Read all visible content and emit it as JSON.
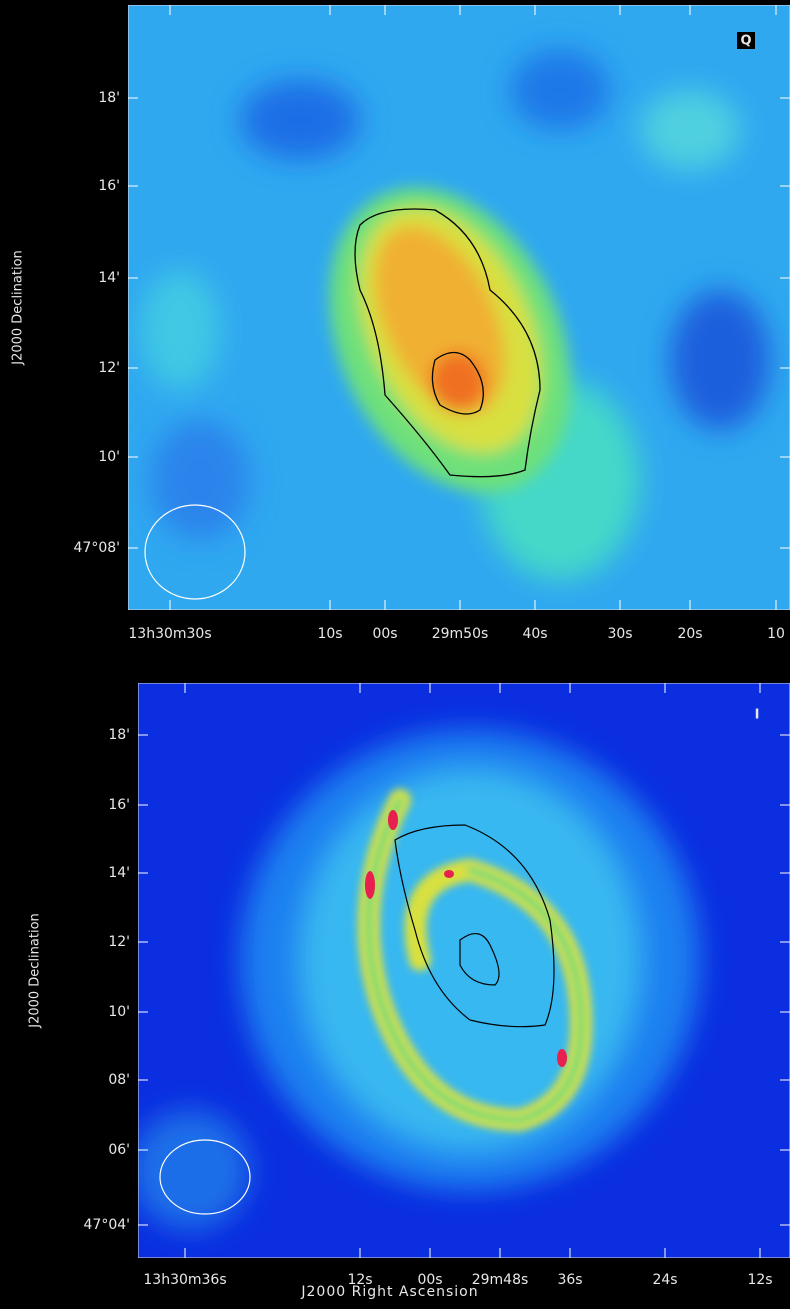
{
  "panels": [
    {
      "label": "Q",
      "y_axis_label": "J2000 Declination",
      "y_ticks": [
        "18'",
        "16'",
        "14'",
        "12'",
        "10'",
        "47°08'"
      ],
      "x_ticks": [
        "13h30m30s",
        "10s",
        "00s",
        "29m50s",
        "40s",
        "30s",
        "20s",
        "10"
      ]
    },
    {
      "label": "I",
      "y_axis_label": "J2000 Declination",
      "x_axis_label": "J2000 Right Ascension",
      "y_ticks": [
        "18'",
        "16'",
        "14'",
        "12'",
        "10'",
        "08'",
        "06'",
        "47°04'"
      ],
      "x_ticks": [
        "13h30m36s",
        "12s",
        "00s",
        "29m48s",
        "36s",
        "24s",
        "12s"
      ]
    }
  ]
}
